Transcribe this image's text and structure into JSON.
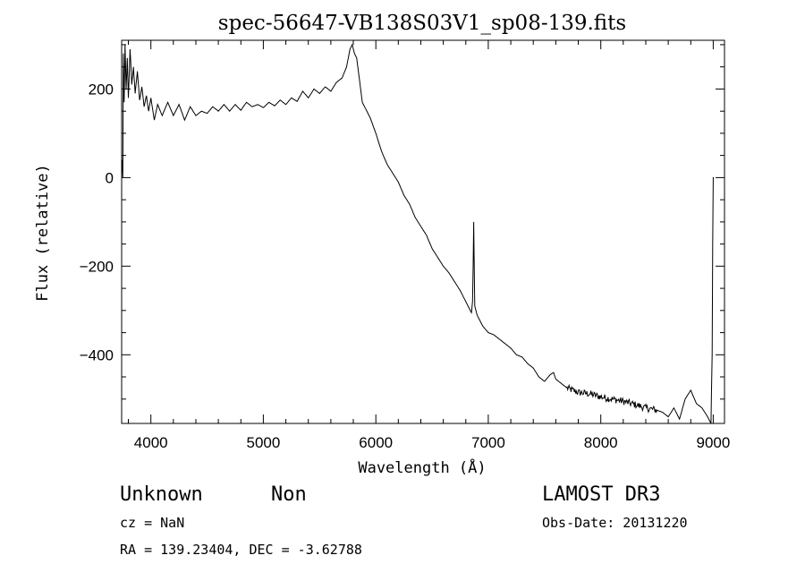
{
  "chart_data": {
    "type": "line",
    "title": "spec-56647-VB138S03V1_sp08-139.fits",
    "xlabel": "Wavelength (Å)",
    "ylabel": "Flux (relative)",
    "xlim": [
      3740,
      9100
    ],
    "ylim": [
      -555,
      310
    ],
    "xticks": [
      4000,
      5000,
      6000,
      7000,
      8000,
      9000
    ],
    "xtick_labels": [
      "4000",
      "5000",
      "6000",
      "7000",
      "8000",
      "9000"
    ],
    "yticks": [
      200,
      0,
      -200,
      -400
    ],
    "ytick_labels": [
      "200",
      "0",
      "−200",
      "−400"
    ],
    "series": [
      {
        "name": "spectrum",
        "points": [
          [
            3745,
            40
          ],
          [
            3750,
            0
          ],
          [
            3755,
            280
          ],
          [
            3762,
            170
          ],
          [
            3770,
            300
          ],
          [
            3780,
            200
          ],
          [
            3790,
            270
          ],
          [
            3800,
            180
          ],
          [
            3815,
            290
          ],
          [
            3830,
            210
          ],
          [
            3845,
            250
          ],
          [
            3860,
            190
          ],
          [
            3880,
            240
          ],
          [
            3900,
            175
          ],
          [
            3920,
            205
          ],
          [
            3940,
            160
          ],
          [
            3960,
            185
          ],
          [
            3980,
            150
          ],
          [
            4000,
            180
          ],
          [
            4030,
            130
          ],
          [
            4060,
            165
          ],
          [
            4100,
            140
          ],
          [
            4150,
            170
          ],
          [
            4200,
            140
          ],
          [
            4250,
            165
          ],
          [
            4300,
            130
          ],
          [
            4350,
            160
          ],
          [
            4400,
            140
          ],
          [
            4450,
            150
          ],
          [
            4500,
            145
          ],
          [
            4550,
            160
          ],
          [
            4600,
            150
          ],
          [
            4650,
            165
          ],
          [
            4700,
            150
          ],
          [
            4750,
            165
          ],
          [
            4800,
            152
          ],
          [
            4850,
            170
          ],
          [
            4900,
            160
          ],
          [
            4950,
            165
          ],
          [
            5000,
            158
          ],
          [
            5050,
            170
          ],
          [
            5100,
            162
          ],
          [
            5150,
            175
          ],
          [
            5200,
            165
          ],
          [
            5250,
            180
          ],
          [
            5300,
            172
          ],
          [
            5350,
            195
          ],
          [
            5400,
            180
          ],
          [
            5450,
            200
          ],
          [
            5500,
            190
          ],
          [
            5550,
            205
          ],
          [
            5600,
            195
          ],
          [
            5650,
            215
          ],
          [
            5700,
            225
          ],
          [
            5740,
            250
          ],
          [
            5770,
            290
          ],
          [
            5790,
            300
          ],
          [
            5810,
            280
          ],
          [
            5830,
            270
          ],
          [
            5850,
            230
          ],
          [
            5880,
            170
          ],
          [
            5900,
            160
          ],
          [
            5950,
            135
          ],
          [
            6000,
            100
          ],
          [
            6050,
            60
          ],
          [
            6100,
            30
          ],
          [
            6150,
            10
          ],
          [
            6200,
            -10
          ],
          [
            6250,
            -40
          ],
          [
            6300,
            -60
          ],
          [
            6350,
            -90
          ],
          [
            6400,
            -110
          ],
          [
            6450,
            -130
          ],
          [
            6500,
            -160
          ],
          [
            6550,
            -180
          ],
          [
            6600,
            -200
          ],
          [
            6650,
            -215
          ],
          [
            6700,
            -235
          ],
          [
            6750,
            -255
          ],
          [
            6800,
            -280
          ],
          [
            6830,
            -295
          ],
          [
            6850,
            -305
          ],
          [
            6860,
            -280
          ],
          [
            6865,
            -200
          ],
          [
            6870,
            -100
          ],
          [
            6875,
            -200
          ],
          [
            6880,
            -290
          ],
          [
            6900,
            -310
          ],
          [
            6950,
            -335
          ],
          [
            7000,
            -350
          ],
          [
            7050,
            -355
          ],
          [
            7100,
            -365
          ],
          [
            7150,
            -375
          ],
          [
            7200,
            -385
          ],
          [
            7250,
            -400
          ],
          [
            7300,
            -405
          ],
          [
            7350,
            -420
          ],
          [
            7400,
            -430
          ],
          [
            7450,
            -450
          ],
          [
            7500,
            -460
          ],
          [
            7550,
            -445
          ],
          [
            7580,
            -440
          ],
          [
            7600,
            -455
          ],
          [
            7650,
            -465
          ],
          [
            7700,
            -475
          ],
          [
            7800,
            -485
          ],
          [
            7900,
            -488
          ],
          [
            8000,
            -495
          ],
          [
            8100,
            -500
          ],
          [
            8200,
            -505
          ],
          [
            8300,
            -512
          ],
          [
            8400,
            -520
          ],
          [
            8500,
            -525
          ],
          [
            8550,
            -530
          ],
          [
            8600,
            -540
          ],
          [
            8650,
            -520
          ],
          [
            8700,
            -545
          ],
          [
            8750,
            -500
          ],
          [
            8800,
            -480
          ],
          [
            8850,
            -510
          ],
          [
            8900,
            -520
          ],
          [
            8950,
            -540
          ],
          [
            8980,
            -555
          ],
          [
            8990,
            -400
          ],
          [
            8995,
            -150
          ],
          [
            9000,
            0
          ],
          [
            9005,
            0
          ]
        ]
      }
    ]
  },
  "info": {
    "object_class": "Unknown",
    "subclass": "Non",
    "cz": "cz = NaN",
    "coords": "RA = 139.23404, DEC =  -3.62788",
    "survey": "LAMOST DR3",
    "obs_date": "Obs-Date: 20131220"
  }
}
